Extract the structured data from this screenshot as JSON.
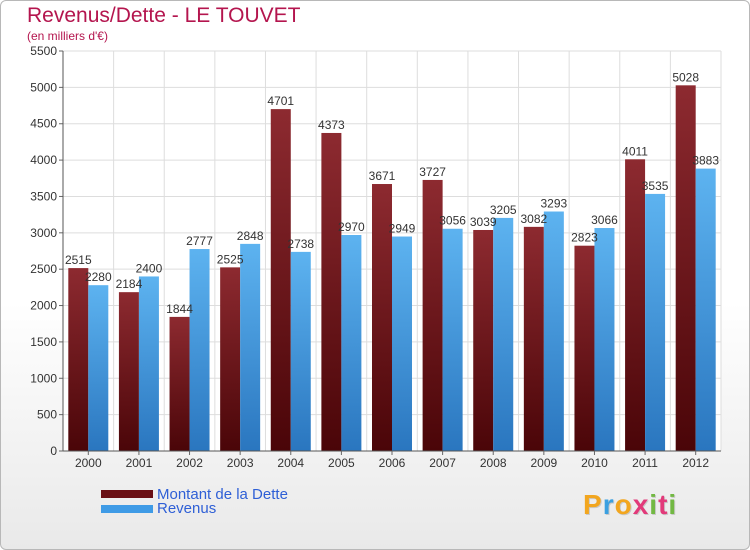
{
  "header": {
    "title": "Revenus/Dette - LE TOUVET",
    "subtitle": "(en milliers d'€)"
  },
  "colors": {
    "dette": "#7b1a1f",
    "revenus": "#3a92d9",
    "title": "#b4154e",
    "legend_text": "#2e5fd6"
  },
  "legend": {
    "items": [
      {
        "label": "Montant de la Dette",
        "color": "#6a0f14"
      },
      {
        "label": "Revenus",
        "color": "#3f9be6"
      }
    ]
  },
  "logo": {
    "letters": [
      "P",
      "r",
      "o",
      "x",
      "i",
      "t",
      "i"
    ],
    "colors": [
      "#f2a61f",
      "#3ba0e0",
      "#f2a61f",
      "#e23a7a",
      "#72b843",
      "#e23a7a",
      "#72b843"
    ]
  },
  "chart_data": {
    "type": "bar",
    "title": "Revenus/Dette - LE TOUVET",
    "subtitle": "(en milliers d'€)",
    "categories": [
      "2000",
      "2001",
      "2002",
      "2003",
      "2004",
      "2005",
      "2006",
      "2007",
      "2008",
      "2009",
      "2010",
      "2011",
      "2012"
    ],
    "series": [
      {
        "name": "Montant de la Dette",
        "values": [
          2515,
          2184,
          1844,
          2525,
          4701,
          4373,
          3671,
          3727,
          3039,
          3082,
          2823,
          4011,
          5028
        ]
      },
      {
        "name": "Revenus",
        "values": [
          2280,
          2400,
          2777,
          2848,
          2738,
          2970,
          2949,
          3056,
          3205,
          3293,
          3066,
          3535,
          3883
        ]
      }
    ],
    "value_labels": [
      [
        "2515",
        "2184",
        "1844",
        "2525",
        "4701",
        "4373",
        "3671",
        "3727",
        "3039",
        "3082",
        "2823",
        "4011",
        "5028"
      ],
      [
        "2280",
        "2400",
        "2777",
        "2848",
        "2738",
        "2970",
        "2949",
        "3056",
        "3205",
        "3293",
        "3066",
        "3535",
        "3883"
      ]
    ],
    "yticks": [
      "0",
      "500",
      "1000",
      "1500",
      "2000",
      "2500",
      "3000",
      "3500",
      "4000",
      "4500",
      "5000",
      "5500"
    ],
    "ylim": [
      0,
      5500
    ],
    "grid": true,
    "legend_position": "bottom-left"
  }
}
